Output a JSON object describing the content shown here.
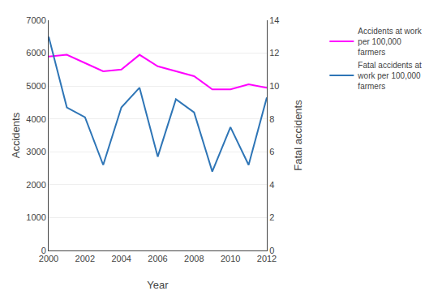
{
  "chart_data": {
    "type": "line",
    "x": [
      2000,
      2001,
      2002,
      2003,
      2004,
      2005,
      2006,
      2007,
      2008,
      2009,
      2010,
      2011,
      2012
    ],
    "series": [
      {
        "name": "Accidents at work\nper 100,000\nfarmers",
        "color": "#FF00FF",
        "values": [
          5900,
          5950,
          5700,
          5450,
          5500,
          5950,
          5600,
          5450,
          5300,
          4900,
          4900,
          5050,
          4950
        ]
      },
      {
        "name": "Fatal accidents at\nwork per 100,000\nfarmers",
        "color": "#2E75B6",
        "axis": "y2",
        "values": [
          13.0,
          8.7,
          8.1,
          5.2,
          8.7,
          9.9,
          5.7,
          9.2,
          8.4,
          4.8,
          7.5,
          5.2,
          9.3
        ]
      }
    ],
    "xlabel": "Year",
    "ylabel": "Accidents",
    "y2label": "Fatal accidents",
    "xlim": [
      2000,
      2012
    ],
    "xticks": [
      2000,
      2002,
      2004,
      2006,
      2008,
      2010,
      2012
    ],
    "ylim": [
      0,
      7000
    ],
    "yticks": [
      0,
      1000,
      2000,
      3000,
      4000,
      5000,
      6000,
      7000
    ],
    "y2lim": [
      0,
      14
    ],
    "y2ticks": [
      0,
      2,
      4,
      6,
      8,
      10,
      12,
      14
    ],
    "grid": true,
    "legend": "right"
  }
}
